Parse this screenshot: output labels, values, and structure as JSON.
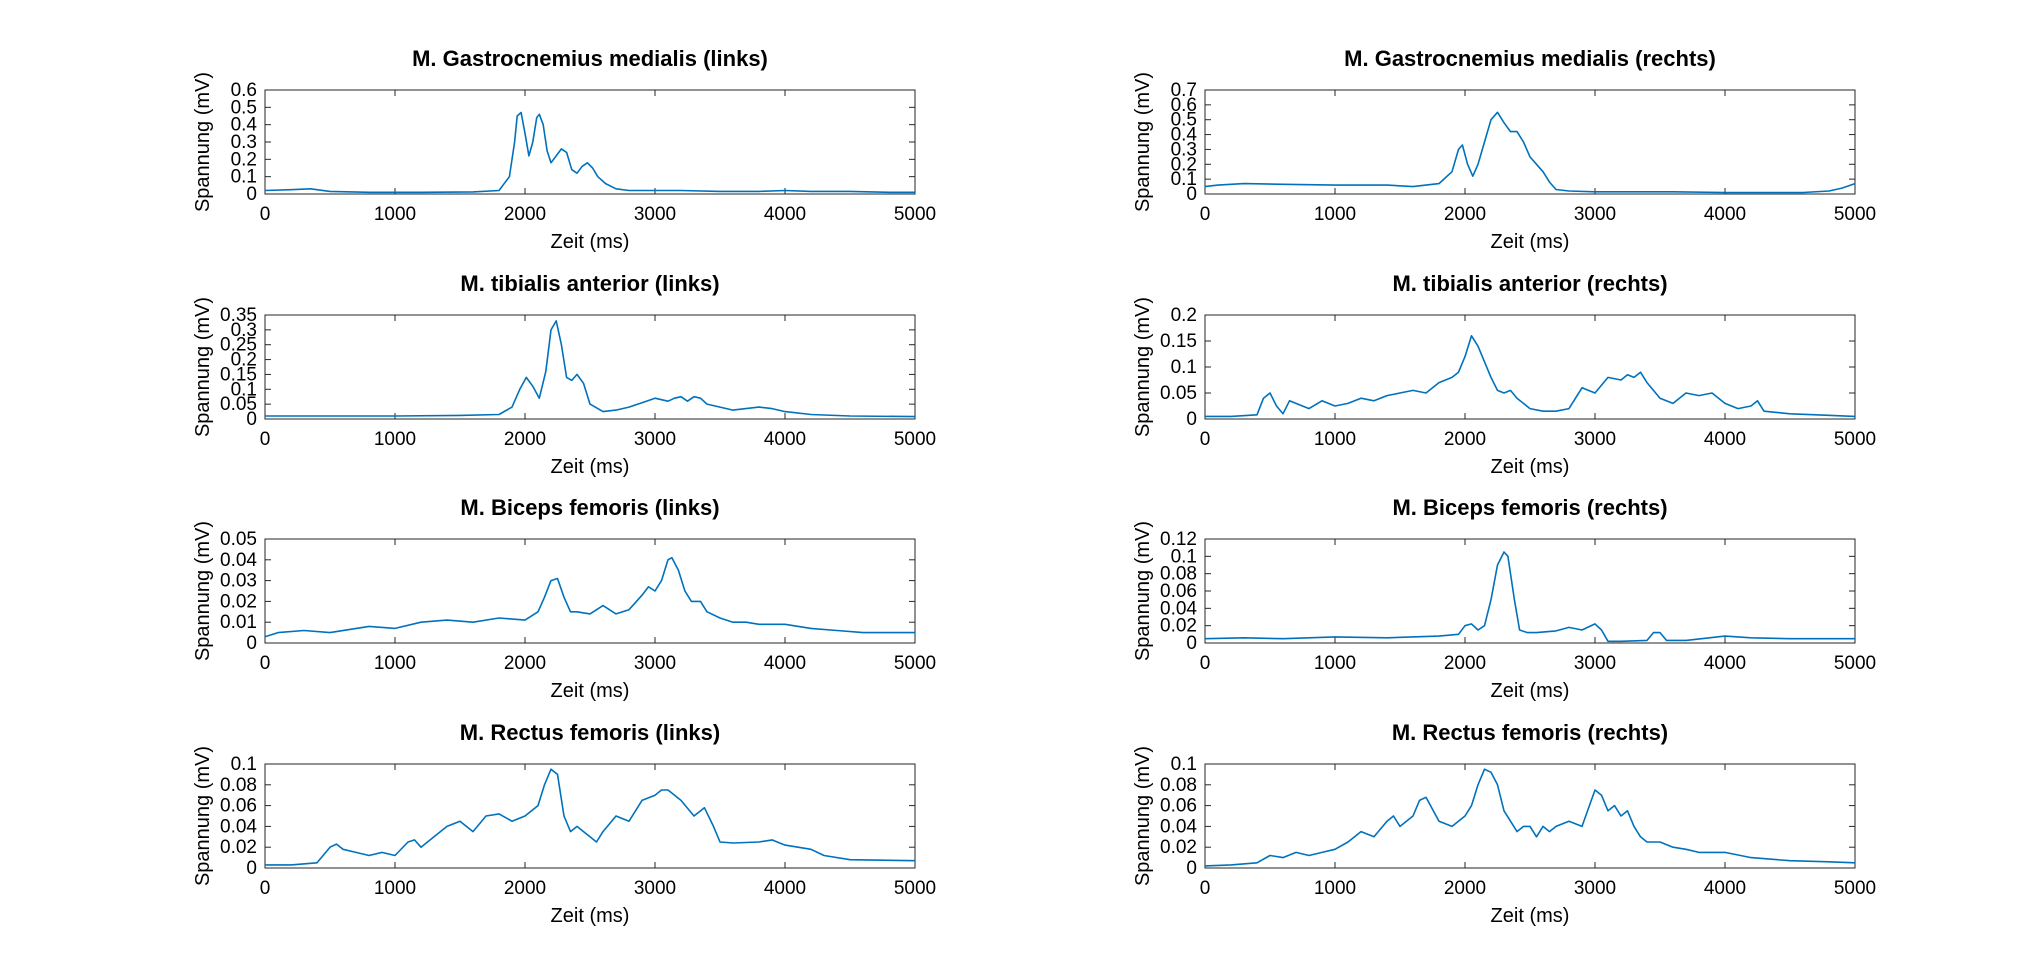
{
  "colors": {
    "series": "#0072BD",
    "axes": "#262626"
  },
  "chart_data": [
    {
      "type": "line",
      "title": "M. Gastrocnemius medialis (links)",
      "xlabel": "Zeit (ms)",
      "ylabel": "Spannung (mV)",
      "xlim": [
        0,
        5000
      ],
      "ylim": [
        0,
        0.6
      ],
      "xticks": [
        0,
        1000,
        2000,
        3000,
        4000,
        5000
      ],
      "yticks": [
        0,
        0.1,
        0.2,
        0.3,
        0.4,
        0.5,
        0.6
      ],
      "grid": false,
      "series": [
        {
          "x": [
            0,
            200,
            350,
            500,
            800,
            1200,
            1600,
            1800,
            1880,
            1920,
            1940,
            1970,
            2000,
            2030,
            2060,
            2090,
            2110,
            2140,
            2170,
            2200,
            2240,
            2280,
            2320,
            2360,
            2400,
            2440,
            2480,
            2520,
            2560,
            2620,
            2700,
            2800,
            3000,
            3200,
            3500,
            3800,
            4000,
            4200,
            4500,
            4800,
            5000
          ],
          "y": [
            0.02,
            0.025,
            0.03,
            0.015,
            0.01,
            0.01,
            0.012,
            0.02,
            0.1,
            0.3,
            0.45,
            0.47,
            0.35,
            0.22,
            0.3,
            0.44,
            0.46,
            0.4,
            0.25,
            0.18,
            0.22,
            0.26,
            0.24,
            0.14,
            0.12,
            0.16,
            0.18,
            0.15,
            0.1,
            0.06,
            0.03,
            0.02,
            0.02,
            0.02,
            0.015,
            0.015,
            0.02,
            0.015,
            0.015,
            0.01,
            0.01
          ]
        }
      ]
    },
    {
      "type": "line",
      "title": "M. Gastrocnemius medialis (rechts)",
      "xlabel": "Zeit (ms)",
      "ylabel": "Spannung (mV)",
      "xlim": [
        0,
        5000
      ],
      "ylim": [
        0,
        0.7
      ],
      "xticks": [
        0,
        1000,
        2000,
        3000,
        4000,
        5000
      ],
      "yticks": [
        0,
        0.1,
        0.2,
        0.3,
        0.4,
        0.5,
        0.6,
        0.7
      ],
      "grid": false,
      "series": [
        {
          "x": [
            0,
            100,
            300,
            600,
            1000,
            1400,
            1600,
            1800,
            1900,
            1950,
            1980,
            2020,
            2060,
            2100,
            2150,
            2200,
            2250,
            2300,
            2350,
            2400,
            2450,
            2500,
            2550,
            2600,
            2650,
            2700,
            2800,
            3000,
            3300,
            3600,
            4000,
            4300,
            4600,
            4800,
            4900,
            5000
          ],
          "y": [
            0.05,
            0.06,
            0.07,
            0.065,
            0.06,
            0.06,
            0.05,
            0.07,
            0.15,
            0.3,
            0.33,
            0.2,
            0.12,
            0.2,
            0.35,
            0.5,
            0.55,
            0.48,
            0.42,
            0.42,
            0.35,
            0.25,
            0.2,
            0.15,
            0.08,
            0.03,
            0.02,
            0.015,
            0.015,
            0.015,
            0.01,
            0.01,
            0.01,
            0.02,
            0.04,
            0.07
          ]
        }
      ]
    },
    {
      "type": "line",
      "title": "M. tibialis anterior (links)",
      "xlabel": "Zeit (ms)",
      "ylabel": "Spannung (mV)",
      "xlim": [
        0,
        5000
      ],
      "ylim": [
        0,
        0.35
      ],
      "xticks": [
        0,
        1000,
        2000,
        3000,
        4000,
        5000
      ],
      "yticks": [
        0,
        0.05,
        0.1,
        0.15,
        0.2,
        0.25,
        0.3,
        0.35
      ],
      "grid": false,
      "series": [
        {
          "x": [
            0,
            500,
            1000,
            1500,
            1800,
            1900,
            1960,
            2010,
            2060,
            2110,
            2160,
            2200,
            2240,
            2280,
            2320,
            2360,
            2400,
            2450,
            2500,
            2600,
            2700,
            2800,
            2900,
            3000,
            3100,
            3150,
            3200,
            3250,
            3300,
            3350,
            3400,
            3500,
            3600,
            3700,
            3800,
            3900,
            4000,
            4200,
            4500,
            5000
          ],
          "y": [
            0.01,
            0.01,
            0.01,
            0.012,
            0.015,
            0.04,
            0.1,
            0.14,
            0.11,
            0.07,
            0.16,
            0.3,
            0.33,
            0.25,
            0.14,
            0.13,
            0.15,
            0.12,
            0.05,
            0.025,
            0.03,
            0.04,
            0.055,
            0.07,
            0.06,
            0.07,
            0.075,
            0.06,
            0.075,
            0.07,
            0.05,
            0.04,
            0.03,
            0.035,
            0.04,
            0.035,
            0.025,
            0.015,
            0.01,
            0.008
          ]
        }
      ]
    },
    {
      "type": "line",
      "title": "M. tibialis anterior (rechts)",
      "xlabel": "Zeit (ms)",
      "ylabel": "Spannung (mV)",
      "xlim": [
        0,
        5000
      ],
      "ylim": [
        0,
        0.2
      ],
      "xticks": [
        0,
        1000,
        2000,
        3000,
        4000,
        5000
      ],
      "yticks": [
        0,
        0.05,
        0.1,
        0.15,
        0.2
      ],
      "grid": false,
      "series": [
        {
          "x": [
            0,
            200,
            400,
            450,
            500,
            550,
            600,
            650,
            700,
            800,
            900,
            1000,
            1100,
            1200,
            1300,
            1400,
            1500,
            1600,
            1700,
            1800,
            1900,
            1950,
            2000,
            2050,
            2100,
            2150,
            2200,
            2250,
            2300,
            2350,
            2400,
            2500,
            2600,
            2700,
            2800,
            2900,
            3000,
            3100,
            3200,
            3250,
            3300,
            3350,
            3400,
            3500,
            3600,
            3700,
            3800,
            3900,
            4000,
            4100,
            4200,
            4250,
            4300,
            4500,
            4700,
            5000
          ],
          "y": [
            0.005,
            0.005,
            0.008,
            0.04,
            0.05,
            0.025,
            0.01,
            0.035,
            0.03,
            0.02,
            0.035,
            0.025,
            0.03,
            0.04,
            0.035,
            0.045,
            0.05,
            0.055,
            0.05,
            0.07,
            0.08,
            0.09,
            0.12,
            0.16,
            0.14,
            0.11,
            0.08,
            0.055,
            0.05,
            0.055,
            0.04,
            0.02,
            0.015,
            0.015,
            0.02,
            0.06,
            0.05,
            0.08,
            0.075,
            0.085,
            0.08,
            0.09,
            0.07,
            0.04,
            0.03,
            0.05,
            0.045,
            0.05,
            0.03,
            0.02,
            0.025,
            0.035,
            0.015,
            0.01,
            0.008,
            0.005
          ]
        }
      ]
    },
    {
      "type": "line",
      "title": "M. Biceps femoris (links)",
      "xlabel": "Zeit (ms)",
      "ylabel": "Spannung (mV)",
      "xlim": [
        0,
        5000
      ],
      "ylim": [
        0,
        0.05
      ],
      "xticks": [
        0,
        1000,
        2000,
        3000,
        4000,
        5000
      ],
      "yticks": [
        0,
        0.01,
        0.02,
        0.03,
        0.04,
        0.05
      ],
      "grid": false,
      "series": [
        {
          "x": [
            0,
            100,
            300,
            500,
            800,
            1000,
            1200,
            1400,
            1600,
            1800,
            2000,
            2100,
            2150,
            2200,
            2250,
            2300,
            2350,
            2400,
            2500,
            2600,
            2700,
            2800,
            2900,
            2950,
            3000,
            3050,
            3100,
            3130,
            3180,
            3230,
            3280,
            3350,
            3400,
            3500,
            3600,
            3700,
            3800,
            4000,
            4200,
            4400,
            4600,
            4800,
            5000
          ],
          "y": [
            0.003,
            0.005,
            0.006,
            0.005,
            0.008,
            0.007,
            0.01,
            0.011,
            0.01,
            0.012,
            0.011,
            0.015,
            0.022,
            0.03,
            0.031,
            0.022,
            0.015,
            0.015,
            0.014,
            0.018,
            0.014,
            0.016,
            0.023,
            0.027,
            0.025,
            0.03,
            0.04,
            0.041,
            0.035,
            0.025,
            0.02,
            0.02,
            0.015,
            0.012,
            0.01,
            0.01,
            0.009,
            0.009,
            0.007,
            0.006,
            0.005,
            0.005,
            0.005
          ]
        }
      ]
    },
    {
      "type": "line",
      "title": "M. Biceps femoris (rechts)",
      "xlabel": "Zeit (ms)",
      "ylabel": "Spannung (mV)",
      "xlim": [
        0,
        5000
      ],
      "ylim": [
        0,
        0.12
      ],
      "xticks": [
        0,
        1000,
        2000,
        3000,
        4000,
        5000
      ],
      "yticks": [
        0,
        0.02,
        0.04,
        0.06,
        0.08,
        0.1,
        0.12
      ],
      "grid": false,
      "series": [
        {
          "x": [
            0,
            300,
            600,
            1000,
            1400,
            1800,
            1950,
            2000,
            2050,
            2100,
            2150,
            2200,
            2250,
            2300,
            2330,
            2380,
            2420,
            2480,
            2550,
            2700,
            2800,
            2900,
            3000,
            3050,
            3100,
            3200,
            3400,
            3450,
            3500,
            3550,
            3700,
            4000,
            4200,
            4500,
            4800,
            5000
          ],
          "y": [
            0.005,
            0.006,
            0.005,
            0.007,
            0.006,
            0.008,
            0.01,
            0.02,
            0.022,
            0.015,
            0.02,
            0.05,
            0.09,
            0.105,
            0.1,
            0.05,
            0.015,
            0.012,
            0.012,
            0.014,
            0.018,
            0.015,
            0.022,
            0.015,
            0.002,
            0.002,
            0.003,
            0.012,
            0.012,
            0.003,
            0.003,
            0.008,
            0.006,
            0.005,
            0.005,
            0.005
          ]
        }
      ]
    },
    {
      "type": "line",
      "title": "M. Rectus femoris (links)",
      "xlabel": "Zeit (ms)",
      "ylabel": "Spannung (mV)",
      "xlim": [
        0,
        5000
      ],
      "ylim": [
        0,
        0.1
      ],
      "xticks": [
        0,
        1000,
        2000,
        3000,
        4000,
        5000
      ],
      "yticks": [
        0,
        0.02,
        0.04,
        0.06,
        0.08,
        0.1
      ],
      "grid": false,
      "series": [
        {
          "x": [
            0,
            200,
            400,
            500,
            550,
            600,
            700,
            800,
            900,
            1000,
            1100,
            1150,
            1200,
            1300,
            1400,
            1500,
            1600,
            1700,
            1800,
            1900,
            2000,
            2100,
            2150,
            2200,
            2250,
            2300,
            2350,
            2400,
            2450,
            2500,
            2550,
            2600,
            2700,
            2800,
            2900,
            3000,
            3050,
            3100,
            3200,
            3300,
            3380,
            3450,
            3500,
            3600,
            3800,
            3900,
            4000,
            4100,
            4200,
            4300,
            4500,
            5000
          ],
          "y": [
            0.003,
            0.003,
            0.005,
            0.02,
            0.023,
            0.018,
            0.015,
            0.012,
            0.015,
            0.012,
            0.025,
            0.027,
            0.02,
            0.03,
            0.04,
            0.045,
            0.035,
            0.05,
            0.052,
            0.045,
            0.05,
            0.06,
            0.08,
            0.095,
            0.09,
            0.05,
            0.035,
            0.04,
            0.035,
            0.03,
            0.025,
            0.035,
            0.05,
            0.045,
            0.065,
            0.07,
            0.075,
            0.075,
            0.065,
            0.05,
            0.058,
            0.04,
            0.025,
            0.024,
            0.025,
            0.027,
            0.022,
            0.02,
            0.018,
            0.012,
            0.008,
            0.007
          ]
        }
      ]
    },
    {
      "type": "line",
      "title": "M. Rectus femoris (rechts)",
      "xlabel": "Zeit (ms)",
      "ylabel": "Spannung (mV)",
      "xlim": [
        0,
        5000
      ],
      "ylim": [
        0,
        0.1
      ],
      "xticks": [
        0,
        1000,
        2000,
        3000,
        4000,
        5000
      ],
      "yticks": [
        0,
        0.02,
        0.04,
        0.06,
        0.08,
        0.1
      ],
      "grid": false,
      "series": [
        {
          "x": [
            0,
            200,
            400,
            500,
            600,
            700,
            800,
            900,
            1000,
            1100,
            1200,
            1300,
            1400,
            1450,
            1500,
            1600,
            1650,
            1700,
            1800,
            1900,
            2000,
            2050,
            2100,
            2150,
            2200,
            2250,
            2300,
            2350,
            2400,
            2450,
            2500,
            2550,
            2600,
            2650,
            2700,
            2800,
            2900,
            3000,
            3050,
            3100,
            3150,
            3200,
            3250,
            3300,
            3350,
            3400,
            3500,
            3600,
            3700,
            3800,
            3900,
            4000,
            4200,
            4500,
            4800,
            5000
          ],
          "y": [
            0.002,
            0.003,
            0.005,
            0.012,
            0.01,
            0.015,
            0.012,
            0.015,
            0.018,
            0.025,
            0.035,
            0.03,
            0.045,
            0.05,
            0.04,
            0.05,
            0.065,
            0.068,
            0.045,
            0.04,
            0.05,
            0.06,
            0.08,
            0.095,
            0.092,
            0.08,
            0.055,
            0.045,
            0.035,
            0.04,
            0.04,
            0.03,
            0.04,
            0.035,
            0.04,
            0.045,
            0.04,
            0.075,
            0.07,
            0.055,
            0.06,
            0.05,
            0.055,
            0.04,
            0.03,
            0.025,
            0.025,
            0.02,
            0.018,
            0.015,
            0.015,
            0.015,
            0.01,
            0.007,
            0.006,
            0.005
          ]
        }
      ]
    }
  ]
}
